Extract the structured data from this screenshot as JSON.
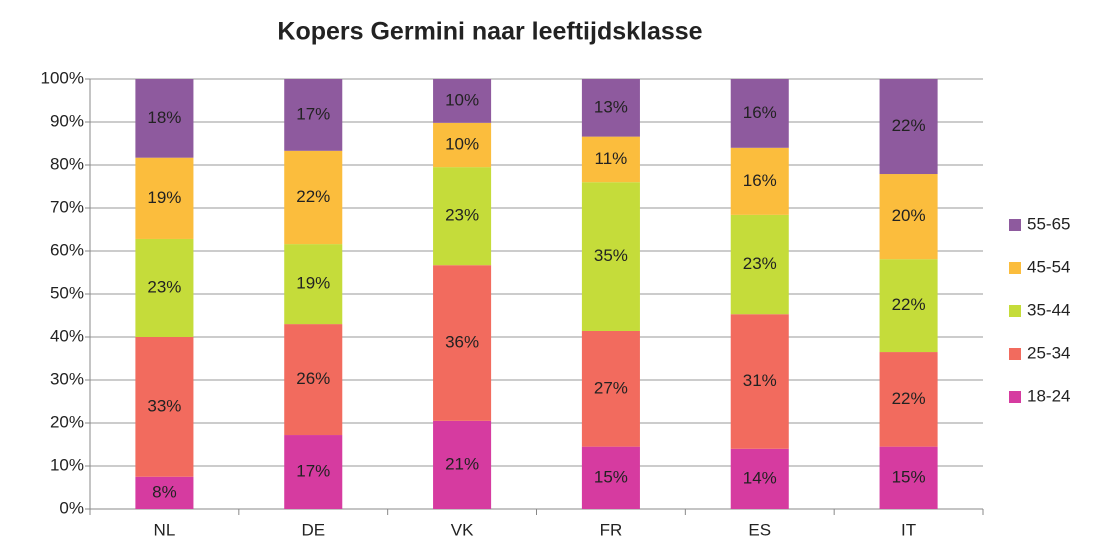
{
  "chart_data": {
    "type": "stacked_bar",
    "title": "Kopers Germini naar leeftijdsklasse",
    "categories": [
      "NL",
      "DE",
      "VK",
      "FR",
      "ES",
      "IT"
    ],
    "series": [
      {
        "name": "18-24",
        "color": "#d63ba0",
        "values": [
          7.5,
          17.2,
          20.5,
          14.5,
          14.0,
          14.5
        ],
        "value_labels": [
          "8%",
          "17%",
          "21%",
          "15%",
          "14%",
          "15%"
        ]
      },
      {
        "name": "25-34",
        "color": "#f26b5e",
        "values": [
          32.5,
          25.8,
          36.2,
          26.9,
          31.3,
          22.0
        ],
        "value_labels": [
          "33%",
          "26%",
          "36%",
          "27%",
          "31%",
          "22%"
        ]
      },
      {
        "name": "35-44",
        "color": "#c5dc3a",
        "values": [
          22.8,
          18.6,
          22.8,
          34.6,
          23.1,
          21.6
        ],
        "value_labels": [
          "23%",
          "19%",
          "23%",
          "35%",
          "23%",
          "22%"
        ]
      },
      {
        "name": "45-54",
        "color": "#fbbd3d",
        "values": [
          18.9,
          21.7,
          10.3,
          10.6,
          15.6,
          19.8
        ],
        "value_labels": [
          "19%",
          "22%",
          "10%",
          "11%",
          "16%",
          "20%"
        ]
      },
      {
        "name": "55-65",
        "color": "#8e5a9e",
        "values": [
          18.3,
          16.7,
          10.2,
          13.4,
          16.0,
          22.1
        ],
        "value_labels": [
          "18%",
          "17%",
          "10%",
          "13%",
          "16%",
          "22%"
        ]
      }
    ],
    "ylim": [
      0,
      100
    ],
    "yticks": [
      {
        "value": 0,
        "label": "0%"
      },
      {
        "value": 10,
        "label": "10%"
      },
      {
        "value": 20,
        "label": "20%"
      },
      {
        "value": 30,
        "label": "30%"
      },
      {
        "value": 40,
        "label": "40%"
      },
      {
        "value": 50,
        "label": "50%"
      },
      {
        "value": 60,
        "label": "60%"
      },
      {
        "value": 70,
        "label": "70%"
      },
      {
        "value": 80,
        "label": "80%"
      },
      {
        "value": 90,
        "label": "90%"
      },
      {
        "value": 100,
        "label": "100%"
      }
    ],
    "grid": true,
    "legend": "right"
  }
}
